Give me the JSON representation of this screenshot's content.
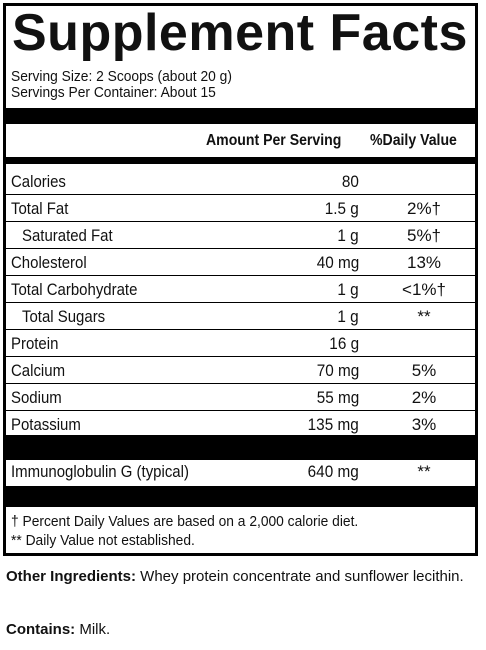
{
  "panel": {
    "title": "Supplement Facts",
    "serving_size": "Serving Size: 2 Scoops (about 20 g)",
    "servings_per_container": "Servings Per Container: About 15",
    "header_amount": "Amount Per Serving",
    "header_dv": "%Daily Value"
  },
  "nutrients": [
    {
      "name": "Calories",
      "amount": "80",
      "dv": ""
    },
    {
      "name": "Total Fat",
      "amount": "1.5 g",
      "dv": "2%†"
    },
    {
      "name": "Saturated Fat",
      "amount": "1 g",
      "dv": "5%†"
    },
    {
      "name": "Cholesterol",
      "amount": "40 mg",
      "dv": "13%"
    },
    {
      "name": "Total Carbohydrate",
      "amount": "1 g",
      "dv": "<1%†"
    },
    {
      "name": "Total Sugars",
      "amount": "1 g",
      "dv": "**"
    },
    {
      "name": "Protein",
      "amount": "16 g",
      "dv": ""
    },
    {
      "name": "Calcium",
      "amount": "70 mg",
      "dv": "5%"
    },
    {
      "name": "Sodium",
      "amount": "55 mg",
      "dv": "2%"
    },
    {
      "name": "Potassium",
      "amount": "135 mg",
      "dv": "3%"
    }
  ],
  "specialty": {
    "name": "Immunoglobulin G (typical)",
    "amount": "640 mg",
    "dv": "**"
  },
  "footnotes": {
    "dagger": "† Percent Daily Values are based on a 2,000 calorie diet.",
    "double_star": "** Daily Value not established."
  },
  "other_ingredients": {
    "label": "Other Ingredients:",
    "text": " Whey protein concentrate and sunflower lecithin."
  },
  "contains": {
    "label": "Contains:",
    "text": " Milk."
  }
}
